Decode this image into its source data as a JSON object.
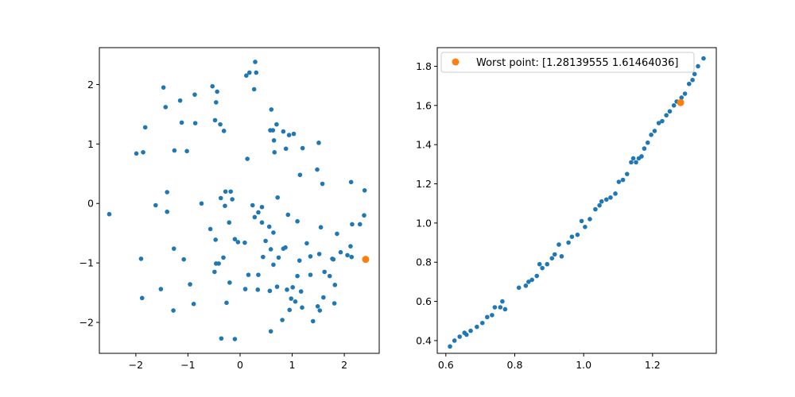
{
  "chart_data": [
    {
      "type": "scatter",
      "title": "",
      "xlabel": "",
      "ylabel": "",
      "xlim": [
        -2.7,
        2.67
      ],
      "ylim": [
        -2.52,
        2.62
      ],
      "xticks": [
        -2,
        -1,
        0,
        1,
        2
      ],
      "yticks": [
        -2,
        -1,
        0,
        1,
        2
      ],
      "xtick_labels": [
        "−2",
        "−1",
        "0",
        "1",
        "2"
      ],
      "ytick_labels": [
        "−2",
        "−1",
        "0",
        "1",
        "2"
      ],
      "grid": false,
      "legend": null,
      "series": [
        {
          "color": "#1f77b4",
          "marker": "dot",
          "points": [
            [
              0.29,
              2.38
            ],
            [
              0.18,
              2.2
            ],
            [
              0.31,
              2.2
            ],
            [
              0.12,
              2.15
            ],
            [
              0.27,
              1.92
            ],
            [
              -0.53,
              1.97
            ],
            [
              -0.44,
              1.88
            ],
            [
              -1.47,
              1.95
            ],
            [
              -0.87,
              1.83
            ],
            [
              -1.15,
              1.73
            ],
            [
              -0.46,
              1.7
            ],
            [
              -1.43,
              1.62
            ],
            [
              0.6,
              1.58
            ],
            [
              -0.48,
              1.4
            ],
            [
              -1.12,
              1.36
            ],
            [
              -0.86,
              1.35
            ],
            [
              -0.38,
              1.33
            ],
            [
              -1.82,
              1.28
            ],
            [
              -0.31,
              1.22
            ],
            [
              0.58,
              1.23
            ],
            [
              0.63,
              1.23
            ],
            [
              0.83,
              1.21
            ],
            [
              0.94,
              1.15
            ],
            [
              1.03,
              1.17
            ],
            [
              0.7,
              1.33
            ],
            [
              0.65,
              1.06
            ],
            [
              1.51,
              1.02
            ],
            [
              0.66,
              0.86
            ],
            [
              1.2,
              0.93
            ],
            [
              -1.26,
              0.89
            ],
            [
              -1.99,
              0.84
            ],
            [
              -1.86,
              0.86
            ],
            [
              -1.02,
              0.88
            ],
            [
              0.88,
              0.92
            ],
            [
              0.14,
              0.75
            ],
            [
              1.48,
              0.57
            ],
            [
              1.15,
              0.48
            ],
            [
              1.58,
              0.33
            ],
            [
              2.13,
              0.36
            ],
            [
              2.39,
              0.22
            ],
            [
              -1.4,
              0.19
            ],
            [
              -0.28,
              0.2
            ],
            [
              -0.18,
              0.2
            ],
            [
              -0.37,
              0.09
            ],
            [
              -0.15,
              0.07
            ],
            [
              0.72,
              0.1
            ],
            [
              -0.74,
              0.0
            ],
            [
              -1.62,
              -0.03
            ],
            [
              -0.29,
              -0.04
            ],
            [
              0.24,
              -0.03
            ],
            [
              0.42,
              -0.06
            ],
            [
              -1.4,
              -0.14
            ],
            [
              0.35,
              -0.15
            ],
            [
              -2.51,
              -0.18
            ],
            [
              2.38,
              -0.2
            ],
            [
              0.28,
              -0.23
            ],
            [
              0.92,
              -0.19
            ],
            [
              1.1,
              -0.3
            ],
            [
              0.42,
              -0.32
            ],
            [
              -0.21,
              -0.32
            ],
            [
              0.56,
              -0.39
            ],
            [
              1.55,
              -0.4
            ],
            [
              -0.57,
              -0.43
            ],
            [
              2.15,
              -0.35
            ],
            [
              2.3,
              -0.35
            ],
            [
              0.64,
              -0.49
            ],
            [
              1.86,
              -0.51
            ],
            [
              -0.47,
              -0.61
            ],
            [
              -0.1,
              -0.6
            ],
            [
              0.49,
              -0.63
            ],
            [
              1.28,
              -0.67
            ],
            [
              -0.04,
              -0.65
            ],
            [
              0.09,
              -0.66
            ],
            [
              -1.27,
              -0.76
            ],
            [
              0.87,
              -0.74
            ],
            [
              0.83,
              -0.76
            ],
            [
              0.59,
              -0.77
            ],
            [
              2.12,
              -0.72
            ],
            [
              1.93,
              -0.82
            ],
            [
              1.52,
              -0.85
            ],
            [
              1.35,
              -0.89
            ],
            [
              0.74,
              -0.91
            ],
            [
              -1.9,
              -0.93
            ],
            [
              -1.08,
              -0.94
            ],
            [
              -0.32,
              -0.91
            ],
            [
              0.44,
              -0.9
            ],
            [
              1.14,
              -0.96
            ],
            [
              1.77,
              -0.93
            ],
            [
              1.79,
              -0.94
            ],
            [
              2.06,
              -0.87
            ],
            [
              -0.46,
              -1.01
            ],
            [
              -0.41,
              -1.01
            ],
            [
              0.64,
              -1.03
            ],
            [
              2.14,
              -0.9
            ],
            [
              -0.49,
              -1.15
            ],
            [
              1.62,
              -1.15
            ],
            [
              0.16,
              -1.2
            ],
            [
              0.35,
              -1.2
            ],
            [
              1.1,
              -1.22
            ],
            [
              1.35,
              -1.2
            ],
            [
              1.72,
              -1.22
            ],
            [
              -1.52,
              -1.44
            ],
            [
              -0.2,
              -1.33
            ],
            [
              -0.96,
              -1.36
            ],
            [
              1.82,
              -1.37
            ],
            [
              0.71,
              -1.4
            ],
            [
              1.01,
              -1.41
            ],
            [
              0.34,
              -1.45
            ],
            [
              0.1,
              -1.44
            ],
            [
              0.9,
              -1.45
            ],
            [
              0.57,
              -1.47
            ],
            [
              1.17,
              -1.48
            ],
            [
              1.6,
              -1.58
            ],
            [
              -1.88,
              -1.59
            ],
            [
              0.98,
              -1.6
            ],
            [
              1.06,
              -1.65
            ],
            [
              -0.26,
              -1.67
            ],
            [
              -0.89,
              -1.69
            ],
            [
              1.49,
              -1.73
            ],
            [
              1.81,
              -1.68
            ],
            [
              1.19,
              -1.75
            ],
            [
              0.95,
              -1.79
            ],
            [
              -1.28,
              -1.8
            ],
            [
              1.53,
              -1.8
            ],
            [
              0.81,
              -1.96
            ],
            [
              1.4,
              -1.98
            ],
            [
              0.59,
              -2.15
            ],
            [
              -0.36,
              -2.27
            ],
            [
              -0.1,
              -2.28
            ]
          ]
        },
        {
          "color": "#ff7f0e",
          "marker": "circle",
          "points": [
            [
              2.41,
              -0.94
            ]
          ]
        }
      ]
    },
    {
      "type": "scatter",
      "title": "",
      "xlabel": "",
      "ylabel": "",
      "xlim": [
        0.575,
        1.385
      ],
      "ylim": [
        0.335,
        1.895
      ],
      "xticks": [
        0.6,
        0.8,
        1.0,
        1.2
      ],
      "yticks": [
        0.4,
        0.6,
        0.8,
        1.0,
        1.2,
        1.4,
        1.6,
        1.8
      ],
      "xtick_labels": [
        "0.6",
        "0.8",
        "1.0",
        "1.2"
      ],
      "ytick_labels": [
        "0.4",
        "0.6",
        "0.8",
        "1.0",
        "1.2",
        "1.4",
        "1.6",
        "1.8"
      ],
      "grid": false,
      "legend": "upper left",
      "series": [
        {
          "color": "#1f77b4",
          "marker": "dot",
          "points": [
            [
              0.612,
              0.37
            ],
            [
              0.625,
              0.4
            ],
            [
              0.64,
              0.42
            ],
            [
              0.654,
              0.44
            ],
            [
              0.66,
              0.43
            ],
            [
              0.672,
              0.45
            ],
            [
              0.69,
              0.47
            ],
            [
              0.706,
              0.49
            ],
            [
              0.72,
              0.52
            ],
            [
              0.734,
              0.53
            ],
            [
              0.742,
              0.57
            ],
            [
              0.758,
              0.57
            ],
            [
              0.764,
              0.6
            ],
            [
              0.772,
              0.56
            ],
            [
              0.812,
              0.67
            ],
            [
              0.832,
              0.68
            ],
            [
              0.84,
              0.7
            ],
            [
              0.85,
              0.71
            ],
            [
              0.864,
              0.73
            ],
            [
              0.872,
              0.79
            ],
            [
              0.88,
              0.77
            ],
            [
              0.894,
              0.79
            ],
            [
              0.908,
              0.82
            ],
            [
              0.916,
              0.84
            ],
            [
              0.928,
              0.89
            ],
            [
              0.936,
              0.83
            ],
            [
              0.956,
              0.9
            ],
            [
              0.966,
              0.93
            ],
            [
              0.982,
              0.94
            ],
            [
              0.994,
              1.01
            ],
            [
              1.004,
              0.98
            ],
            [
              1.018,
              1.02
            ],
            [
              1.034,
              1.07
            ],
            [
              1.046,
              1.09
            ],
            [
              1.052,
              1.11
            ],
            [
              1.066,
              1.12
            ],
            [
              1.078,
              1.13
            ],
            [
              1.092,
              1.15
            ],
            [
              1.102,
              1.21
            ],
            [
              1.114,
              1.22
            ],
            [
              1.126,
              1.25
            ],
            [
              1.138,
              1.31
            ],
            [
              1.144,
              1.33
            ],
            [
              1.152,
              1.31
            ],
            [
              1.16,
              1.33
            ],
            [
              1.168,
              1.34
            ],
            [
              1.176,
              1.38
            ],
            [
              1.186,
              1.41
            ],
            [
              1.196,
              1.45
            ],
            [
              1.206,
              1.47
            ],
            [
              1.218,
              1.51
            ],
            [
              1.228,
              1.52
            ],
            [
              1.24,
              1.55
            ],
            [
              1.25,
              1.57
            ],
            [
              1.262,
              1.6
            ],
            [
              1.27,
              1.62
            ],
            [
              1.284,
              1.64
            ],
            [
              1.294,
              1.66
            ],
            [
              1.306,
              1.71
            ],
            [
              1.316,
              1.73
            ],
            [
              1.322,
              1.76
            ],
            [
              1.332,
              1.8
            ],
            [
              1.348,
              1.84
            ]
          ]
        },
        {
          "name": "Worst point: [1.28139555 1.61464036]",
          "color": "#ff7f0e",
          "marker": "circle",
          "points": [
            [
              1.2814,
              1.6146
            ]
          ]
        }
      ],
      "legend_entry": "Worst point: [1.28139555 1.61464036]"
    }
  ]
}
